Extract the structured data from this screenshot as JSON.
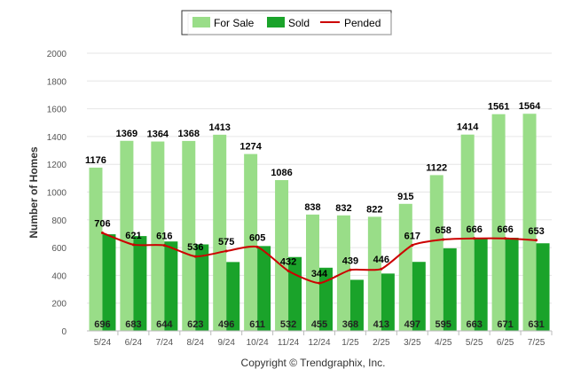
{
  "chart_data": {
    "type": "bar",
    "categories": [
      "5/24",
      "6/24",
      "7/24",
      "8/24",
      "9/24",
      "10/24",
      "11/24",
      "12/24",
      "1/25",
      "2/25",
      "3/25",
      "4/25",
      "5/25",
      "6/25",
      "7/25"
    ],
    "series": [
      {
        "name": "For Sale",
        "kind": "bar",
        "color": "#99dd88",
        "values": [
          1176,
          1369,
          1364,
          1368,
          1413,
          1274,
          1086,
          838,
          832,
          822,
          915,
          1122,
          1414,
          1561,
          1564
        ]
      },
      {
        "name": "Sold",
        "kind": "bar",
        "color": "#1aa32a",
        "values": [
          696,
          683,
          644,
          623,
          496,
          611,
          532,
          455,
          368,
          413,
          497,
          595,
          663,
          671,
          631
        ]
      },
      {
        "name": "Pended",
        "kind": "line",
        "color": "#cc0000",
        "values": [
          706,
          621,
          616,
          536,
          575,
          605,
          432,
          344,
          439,
          446,
          617,
          658,
          666,
          666,
          653
        ]
      }
    ],
    "ylabel": "Number of Homes",
    "xlabel": "",
    "ylim": [
      0,
      2000
    ],
    "yticks": [
      0,
      200,
      400,
      600,
      800,
      1000,
      1200,
      1400,
      1600,
      1800,
      2000
    ],
    "grid": true,
    "legend_position": "top-center"
  },
  "footer": {
    "copyright": "Copyright © Trendgraphix, Inc."
  }
}
